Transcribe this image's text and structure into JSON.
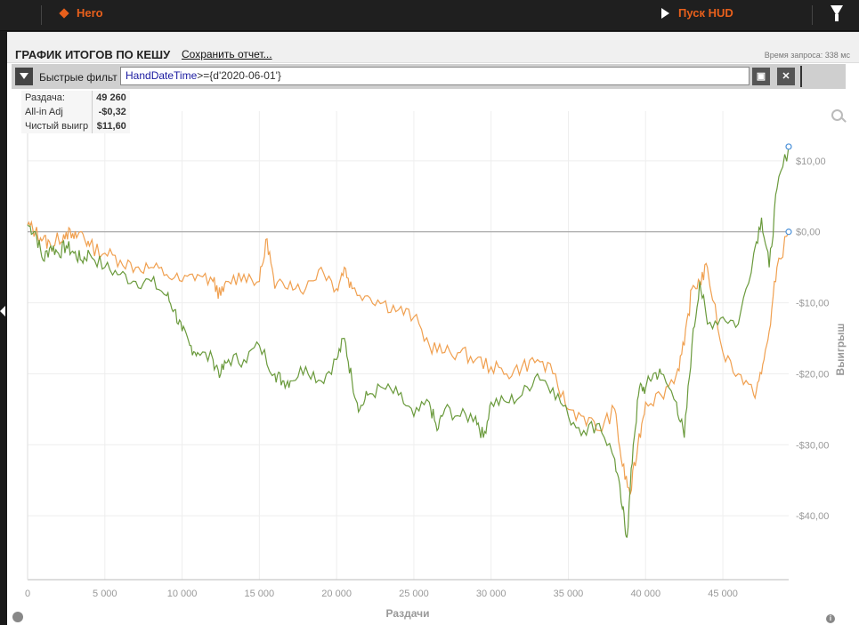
{
  "topbar": {
    "hero_label": "Hero",
    "run_label": "Пуск HUD"
  },
  "report": {
    "title": "ГРАФИК ИТОГОВ ПО КЕШУ",
    "save_link": "Сохранить отчет...",
    "query_time": "Время запроса: 338 мс"
  },
  "filter": {
    "label": "Быстрые фильт",
    "query_field": "HandDateTime",
    "query_rest": ">={d'2020-06-01'}",
    "save_icon": "save-icon",
    "clear_icon": "close-icon"
  },
  "stats": [
    {
      "label": "Раздача:",
      "value": "49 260"
    },
    {
      "label": "All-in Adj",
      "value": "-$0,32"
    },
    {
      "label": "Чистый выигр",
      "value": "$11,60"
    }
  ],
  "colors": {
    "net": "#6a9a3c",
    "allin": "#f0a050",
    "accent": "#e8601c"
  },
  "chart_data": {
    "type": "line",
    "xlabel": "Раздачи",
    "ylabel": "Выигрыш",
    "xlim": [
      0,
      49260
    ],
    "ylim": [
      -49,
      17
    ],
    "x_ticks": [
      0,
      5000,
      10000,
      15000,
      20000,
      25000,
      30000,
      35000,
      40000,
      45000
    ],
    "x_tick_labels": [
      "0",
      "5 000",
      "10 000",
      "15 000",
      "20 000",
      "25 000",
      "30 000",
      "35 000",
      "40 000",
      "45 000"
    ],
    "y_ticks": [
      10,
      0,
      -10,
      -20,
      -30,
      -40
    ],
    "y_tick_labels": [
      "$10,00",
      "$0,00",
      "-$10,00",
      "-$20,00",
      "-$30,00",
      "-$40,00"
    ],
    "grid": true,
    "series": [
      {
        "key": "net",
        "color": "#6a9a3c",
        "x": [
          0,
          500,
          1000,
          1500,
          2000,
          2500,
          3000,
          3500,
          4000,
          5000,
          6000,
          7000,
          8000,
          9000,
          9500,
          10000,
          10500,
          11000,
          12000,
          12500,
          13000,
          14000,
          15000,
          16000,
          16500,
          17000,
          18000,
          19000,
          20000,
          20500,
          21000,
          21500,
          22000,
          23000,
          24000,
          25000,
          26000,
          26500,
          27000,
          28000,
          29000,
          29500,
          30000,
          31000,
          32000,
          33000,
          34000,
          35000,
          36000,
          37000,
          38000,
          38500,
          38800,
          39200,
          39600,
          40000,
          40500,
          41000,
          42000,
          42500,
          43000,
          43500,
          44000,
          45000,
          46000,
          47000,
          47500,
          48000,
          48500,
          49260
        ],
        "y": [
          1,
          0,
          -4,
          -2,
          -3,
          -2,
          -3,
          -4,
          -3,
          -5,
          -6,
          -7,
          -7,
          -9,
          -11,
          -14,
          -16,
          -17,
          -18,
          -20,
          -18,
          -18,
          -16,
          -20,
          -21,
          -21,
          -19,
          -21,
          -18,
          -15,
          -21,
          -25,
          -23,
          -22,
          -23,
          -26,
          -24,
          -28,
          -25,
          -26,
          -26,
          -29,
          -24,
          -24,
          -23,
          -20,
          -22,
          -26,
          -28,
          -27,
          -32,
          -39,
          -43,
          -30,
          -22,
          -22,
          -20,
          -20,
          -24,
          -29,
          -16,
          -7,
          -13,
          -12,
          -13,
          -3,
          2,
          -5,
          6,
          12
        ]
      },
      {
        "key": "allin",
        "color": "#f0a050",
        "x": [
          0,
          500,
          1000,
          1500,
          2000,
          2500,
          3000,
          3500,
          4000,
          5000,
          6000,
          7000,
          8000,
          9000,
          10000,
          11000,
          12000,
          12500,
          13000,
          14000,
          15000,
          15500,
          16000,
          17000,
          18000,
          19000,
          20000,
          20500,
          21000,
          22000,
          23000,
          24000,
          25000,
          26000,
          27000,
          28000,
          29000,
          30000,
          31000,
          32000,
          33000,
          34000,
          35000,
          36000,
          37000,
          38000,
          38500,
          39000,
          39500,
          40000,
          41000,
          42000,
          42500,
          43000,
          43500,
          44000,
          45000,
          46000,
          47000,
          47500,
          48000,
          48500,
          49260
        ],
        "y": [
          1,
          0,
          -1,
          -2,
          -1,
          0,
          -1,
          0,
          -2,
          -3,
          -4,
          -5,
          -5,
          -6,
          -7,
          -6,
          -7,
          -9,
          -7,
          -6,
          -7,
          -1,
          -8,
          -7,
          -8,
          -5,
          -8,
          -5,
          -8,
          -9,
          -10,
          -11,
          -12,
          -16,
          -17,
          -17,
          -18,
          -19,
          -20,
          -19,
          -18,
          -20,
          -25,
          -26,
          -28,
          -25,
          -33,
          -37,
          -30,
          -24,
          -23,
          -20,
          -16,
          -8,
          -7,
          -5,
          -17,
          -20,
          -23,
          -20,
          -14,
          -5,
          0
        ]
      }
    ]
  }
}
